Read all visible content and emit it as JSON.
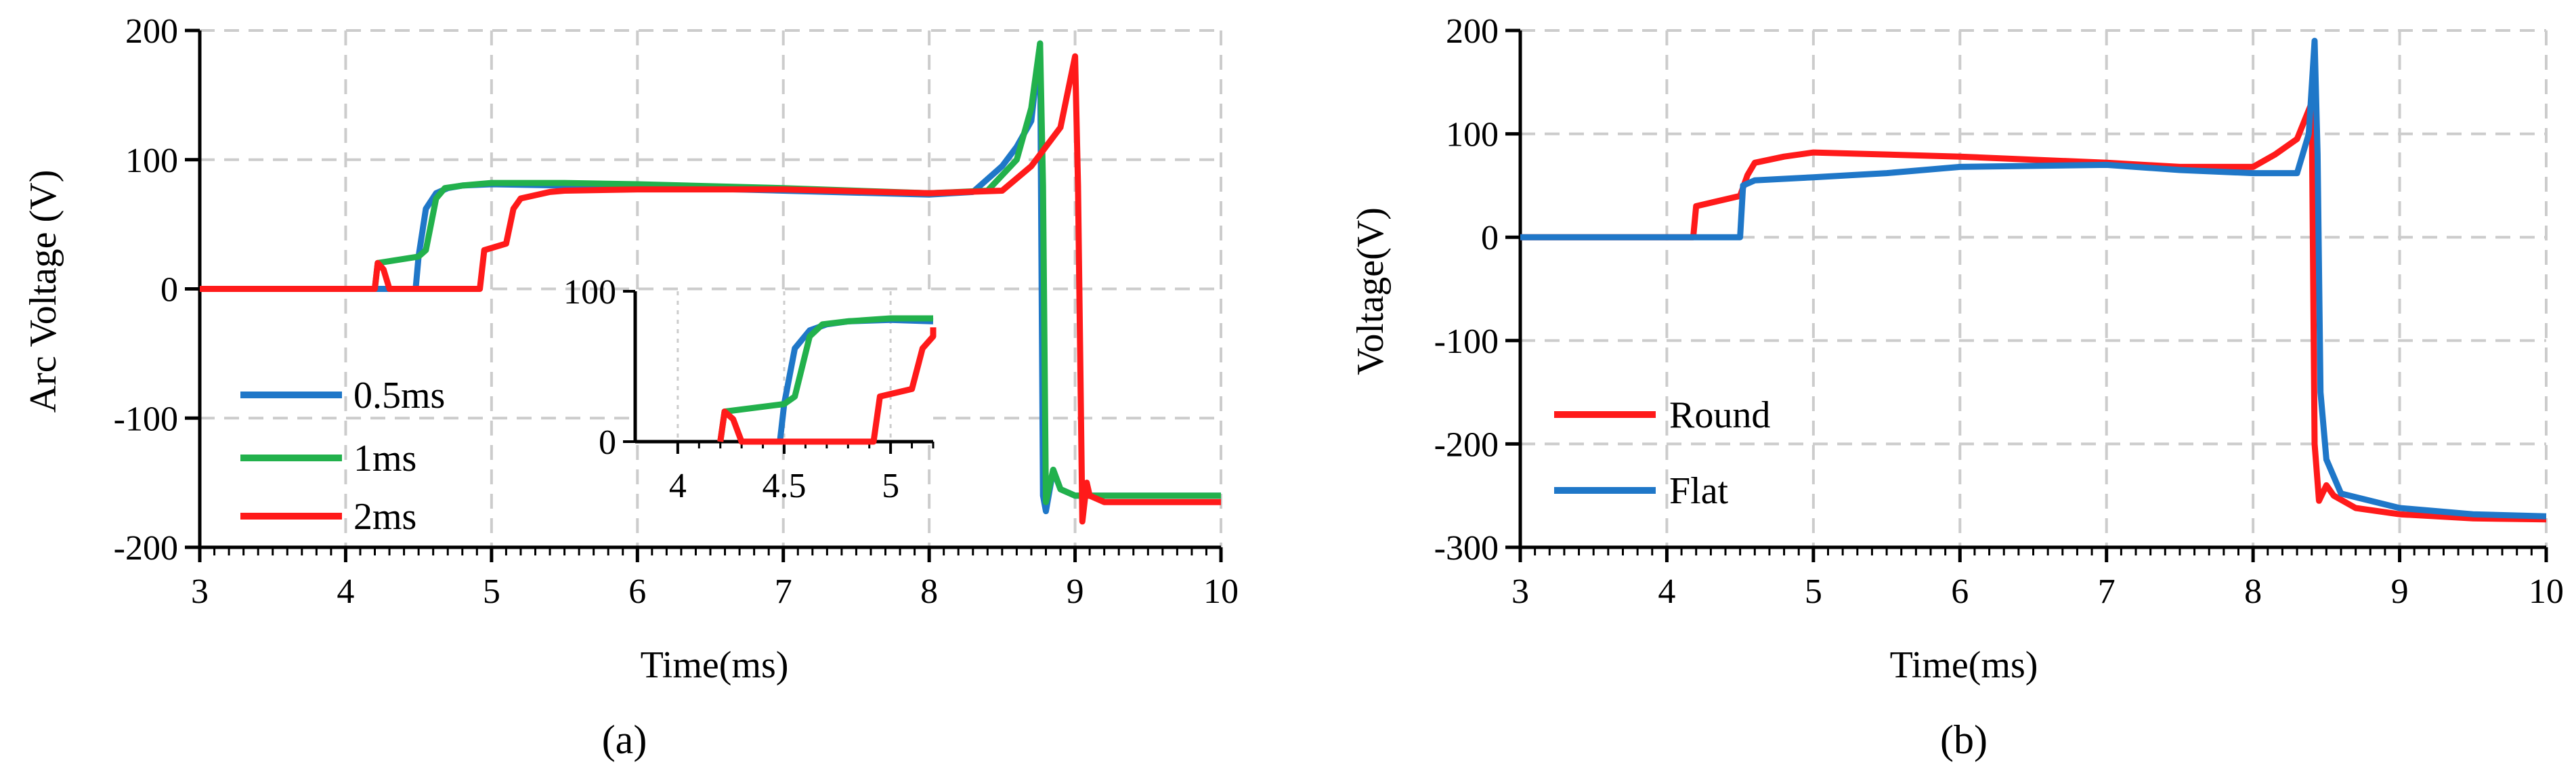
{
  "panel_labels": [
    "(a)",
    "(b)"
  ],
  "colors": {
    "blue": "#1F77C8",
    "green": "#22B14C",
    "red": "#FF1A1A",
    "grid": "#CCCCCC"
  },
  "chart_data": [
    {
      "panel": "(a)",
      "type": "line",
      "xlabel": "Time(ms)",
      "ylabel": "Arc Voltage (V)",
      "xlim": [
        3,
        10
      ],
      "ylim": [
        -200,
        200
      ],
      "xticks": [
        3,
        4,
        5,
        6,
        7,
        8,
        9,
        10
      ],
      "yticks": [
        -200,
        -100,
        0,
        100,
        200
      ],
      "grid": true,
      "legend": "lower-left",
      "series": [
        {
          "name": "0.5ms",
          "color": "#1F77C8",
          "x": [
            3,
            4.48,
            4.5,
            4.55,
            4.62,
            4.7,
            4.8,
            5.0,
            5.5,
            6,
            7,
            8,
            8.3,
            8.5,
            8.6,
            8.7,
            8.76,
            8.78,
            8.8,
            8.85,
            8.9,
            9.0,
            9.5,
            10
          ],
          "y": [
            0,
            0,
            25,
            62,
            74,
            78,
            80,
            81,
            80,
            79,
            76,
            73,
            75,
            95,
            110,
            130,
            190,
            -160,
            -172,
            -140,
            -155,
            -160,
            -160,
            -160
          ]
        },
        {
          "name": "1ms",
          "color": "#22B14C",
          "x": [
            3,
            4.2,
            4.22,
            4.5,
            4.55,
            4.62,
            4.68,
            4.8,
            5.0,
            5.5,
            6,
            7,
            8,
            8.4,
            8.6,
            8.7,
            8.76,
            8.78,
            8.8,
            8.85,
            8.9,
            9.0,
            9.5,
            10
          ],
          "y": [
            0,
            0,
            20,
            25,
            30,
            70,
            78,
            80,
            82,
            82,
            81,
            78,
            74,
            76,
            100,
            140,
            190,
            80,
            -165,
            -140,
            -155,
            -160,
            -160,
            -160
          ]
        },
        {
          "name": "2ms",
          "color": "#FF1A1A",
          "x": [
            3,
            4.2,
            4.22,
            4.26,
            4.3,
            4.92,
            4.95,
            5.1,
            5.15,
            5.2,
            5.4,
            5.5,
            6,
            7,
            8,
            8.5,
            8.7,
            8.9,
            9.0,
            9.02,
            9.05,
            9.08,
            9.1,
            9.2,
            9.5,
            10
          ],
          "y": [
            0,
            0,
            20,
            15,
            0,
            0,
            30,
            35,
            62,
            70,
            75,
            76,
            77,
            77,
            74,
            76,
            95,
            125,
            180,
            80,
            -180,
            -150,
            -160,
            -165,
            -165,
            -165
          ]
        }
      ],
      "inset": {
        "xlim": [
          3.8,
          5.2
        ],
        "ylim": [
          0,
          100
        ],
        "xticks": [
          4,
          4.5,
          5
        ],
        "yticks": [
          0,
          100
        ]
      }
    },
    {
      "panel": "(b)",
      "type": "line",
      "xlabel": "Time(ms)",
      "ylabel": "Voltage(V)",
      "xlim": [
        3,
        10
      ],
      "ylim": [
        -300,
        200
      ],
      "xticks": [
        3,
        4,
        5,
        6,
        7,
        8,
        9,
        10
      ],
      "yticks": [
        -300,
        -200,
        -100,
        0,
        100,
        200
      ],
      "grid": true,
      "legend": "lower-left",
      "series": [
        {
          "name": "Round",
          "color": "#FF1A1A",
          "x": [
            3,
            4.18,
            4.2,
            4.5,
            4.55,
            4.6,
            4.8,
            5,
            5.5,
            6,
            7,
            7.5,
            8,
            8.15,
            8.3,
            8.4,
            8.42,
            8.45,
            8.5,
            8.55,
            8.7,
            9,
            9.5,
            10
          ],
          "y": [
            0,
            0,
            30,
            40,
            60,
            72,
            78,
            82,
            80,
            78,
            72,
            68,
            68,
            80,
            95,
            130,
            -200,
            -255,
            -240,
            -250,
            -262,
            -268,
            -272,
            -273
          ]
        },
        {
          "name": "Flat",
          "color": "#1F77C8",
          "x": [
            3,
            4.5,
            4.52,
            4.6,
            5,
            5.5,
            6,
            7,
            7.5,
            8,
            8.3,
            8.38,
            8.42,
            8.44,
            8.46,
            8.5,
            8.6,
            9,
            9.5,
            10
          ],
          "y": [
            0,
            0,
            50,
            55,
            58,
            62,
            68,
            70,
            65,
            62,
            62,
            100,
            190,
            80,
            -150,
            -215,
            -248,
            -262,
            -268,
            -270
          ]
        }
      ]
    }
  ]
}
